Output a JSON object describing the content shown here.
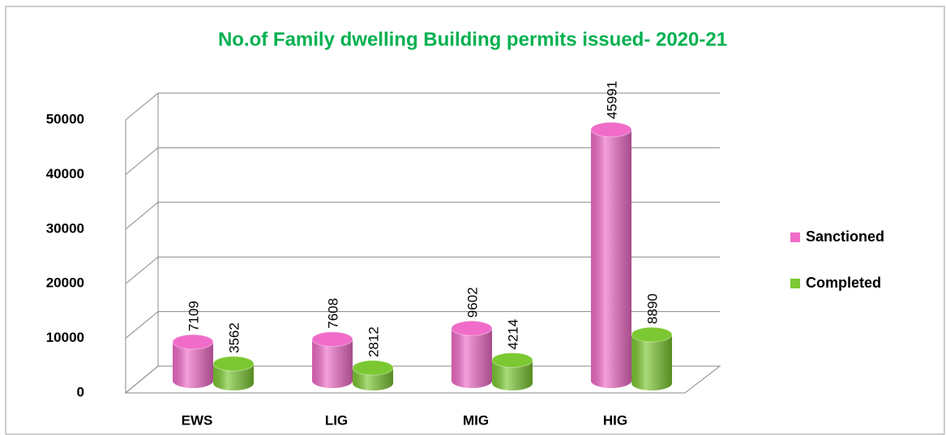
{
  "chart_data": {
    "type": "bar3d",
    "title": "No.of Family dwelling Building permits issued- 2020-21",
    "categories": [
      "EWS",
      "LIG",
      "MIG",
      "HIG"
    ],
    "series": [
      {
        "name": "Sanctioned",
        "color": "#f06cc8",
        "values": [
          7109,
          7608,
          9602,
          45991
        ]
      },
      {
        "name": "Completed",
        "color": "#7cc832",
        "values": [
          3562,
          2812,
          4214,
          8890
        ]
      }
    ],
    "ylim": [
      0,
      50000
    ],
    "yticks": [
      0,
      10000,
      20000,
      30000,
      40000,
      50000
    ],
    "grid": true,
    "legend": "right"
  }
}
